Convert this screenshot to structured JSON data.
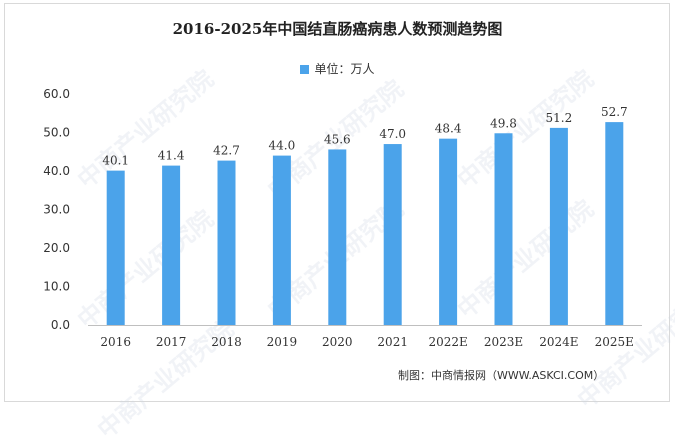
{
  "chart_data": {
    "type": "bar",
    "title": "2016-2025年中国结直肠癌病患人数预测趋势图",
    "legend": {
      "label": "单位：万人",
      "placement": "top"
    },
    "categories": [
      "2016",
      "2017",
      "2018",
      "2019",
      "2020",
      "2021",
      "2022E",
      "2023E",
      "2024E",
      "2025E"
    ],
    "values": [
      40.1,
      41.4,
      42.7,
      44.0,
      45.6,
      47.0,
      48.4,
      49.8,
      51.2,
      52.7
    ],
    "value_labels": [
      "40.1",
      "41.4",
      "42.7",
      "44.0",
      "45.6",
      "47.0",
      "48.4",
      "49.8",
      "51.2",
      "52.7"
    ],
    "y_ticks": [
      "0.0",
      "10.0",
      "20.0",
      "30.0",
      "40.0",
      "50.0",
      "60.0"
    ],
    "ylim": [
      0,
      60
    ],
    "grid": false,
    "bar_color": "#4ba3ea"
  },
  "source": "制图：中商情报网（WWW.ASKCI.COM）",
  "watermark": "中商产业研究院"
}
